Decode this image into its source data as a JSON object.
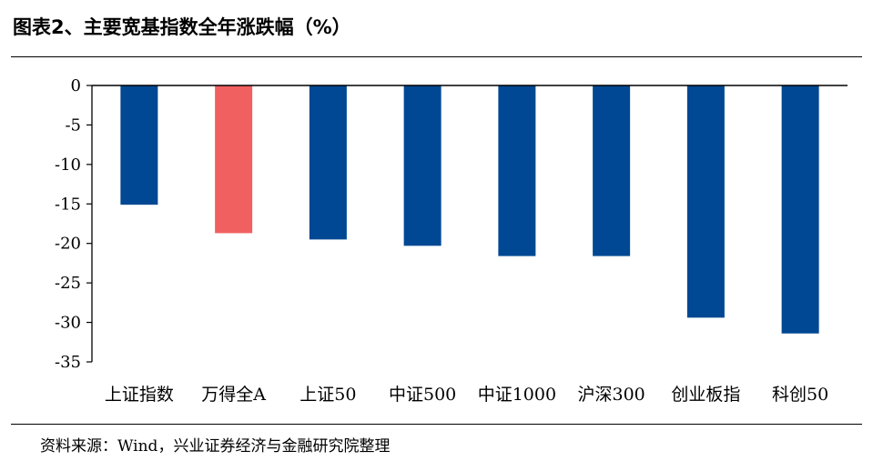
{
  "title": "图表2、主要宽基指数全年涨跌幅（%）",
  "source": "资料来源：Wind，兴业证券经济与金融研究院整理",
  "chart_data": {
    "type": "bar",
    "title": "图表2、主要宽基指数全年涨跌幅（%）",
    "xlabel": "",
    "ylabel": "",
    "ylim": [
      -35,
      0
    ],
    "yticks": [
      0,
      -5,
      -10,
      -15,
      -20,
      -25,
      -30,
      -35
    ],
    "ytick_labels": [
      "0",
      "-5",
      "-10",
      "-15",
      "-20",
      "-25",
      "-30",
      "-35"
    ],
    "categories": [
      "上证指数",
      "万得全A",
      "上证50",
      "中证500",
      "中证1000",
      "沪深300",
      "创业板指",
      "科创50"
    ],
    "values": [
      -15.1,
      -18.7,
      -19.5,
      -20.3,
      -21.6,
      -21.6,
      -29.4,
      -31.4
    ],
    "grid": false,
    "legend": "none",
    "colors": {
      "default": "#004893",
      "highlight": "#F06060",
      "highlight_index": 1
    }
  }
}
